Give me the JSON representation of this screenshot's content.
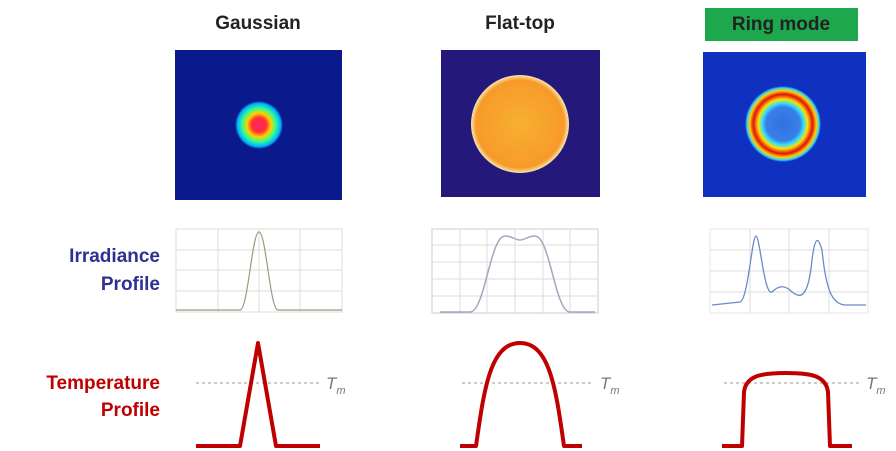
{
  "columns": [
    {
      "title": "Gaussian",
      "melt_label": {
        "symbol": "T",
        "subscript": "m"
      }
    },
    {
      "title": "Flat-top",
      "melt_label": {
        "symbol": "T",
        "subscript": "m"
      }
    },
    {
      "title": "Ring mode",
      "melt_label": {
        "symbol": "T",
        "subscript": "m"
      }
    }
  ],
  "rows": [
    {
      "label": [
        "Irradiance",
        "Profile"
      ]
    },
    {
      "label": [
        "Temperature",
        "Profile"
      ]
    }
  ]
}
